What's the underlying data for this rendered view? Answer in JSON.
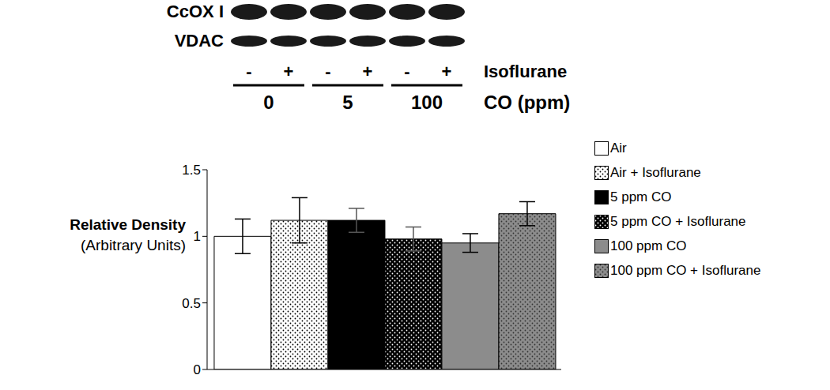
{
  "chart_data": {
    "type": "bar",
    "y_label": "Relative Density",
    "y_label_sub": "(Arbitrary Units)",
    "categories": [
      null
    ],
    "ylim": [
      0,
      1.5
    ],
    "yticks": [
      0,
      0.5,
      1,
      1.5
    ],
    "grid": false,
    "legend": "right",
    "tick_labels": "y",
    "series": [
      {
        "name": "Air",
        "color": "#ffffff",
        "values": [
          1.0
        ],
        "errors": [
          0.13
        ]
      },
      {
        "name": "Air + Isoflurane",
        "color": "#ffffff",
        "values": [
          1.12
        ],
        "errors": [
          0.17
        ]
      },
      {
        "name": "5 ppm CO",
        "color": "#000000",
        "values": [
          1.12
        ],
        "errors": [
          0.09
        ]
      },
      {
        "name": "5 ppm CO + Isoflurane",
        "color": "#000000",
        "values": [
          0.98
        ],
        "errors": [
          0.09
        ]
      },
      {
        "name": "100 ppm CO",
        "color": "#8c8c8c",
        "values": [
          0.95
        ],
        "errors": [
          0.07
        ]
      },
      {
        "name": "100 ppm CO + Isoflurane",
        "color": "#8c8c8c",
        "values": [
          1.17
        ],
        "errors": [
          0.09
        ]
      }
    ]
  },
  "blot": {
    "rows": [
      "CcOX I",
      "VDAC"
    ],
    "lanes": [
      "-",
      "+",
      "-",
      "+",
      "-",
      "+"
    ],
    "lane_label": "Isoflurane",
    "groups": [
      "0",
      "5",
      "100"
    ],
    "group_label": "CO (ppm)"
  }
}
